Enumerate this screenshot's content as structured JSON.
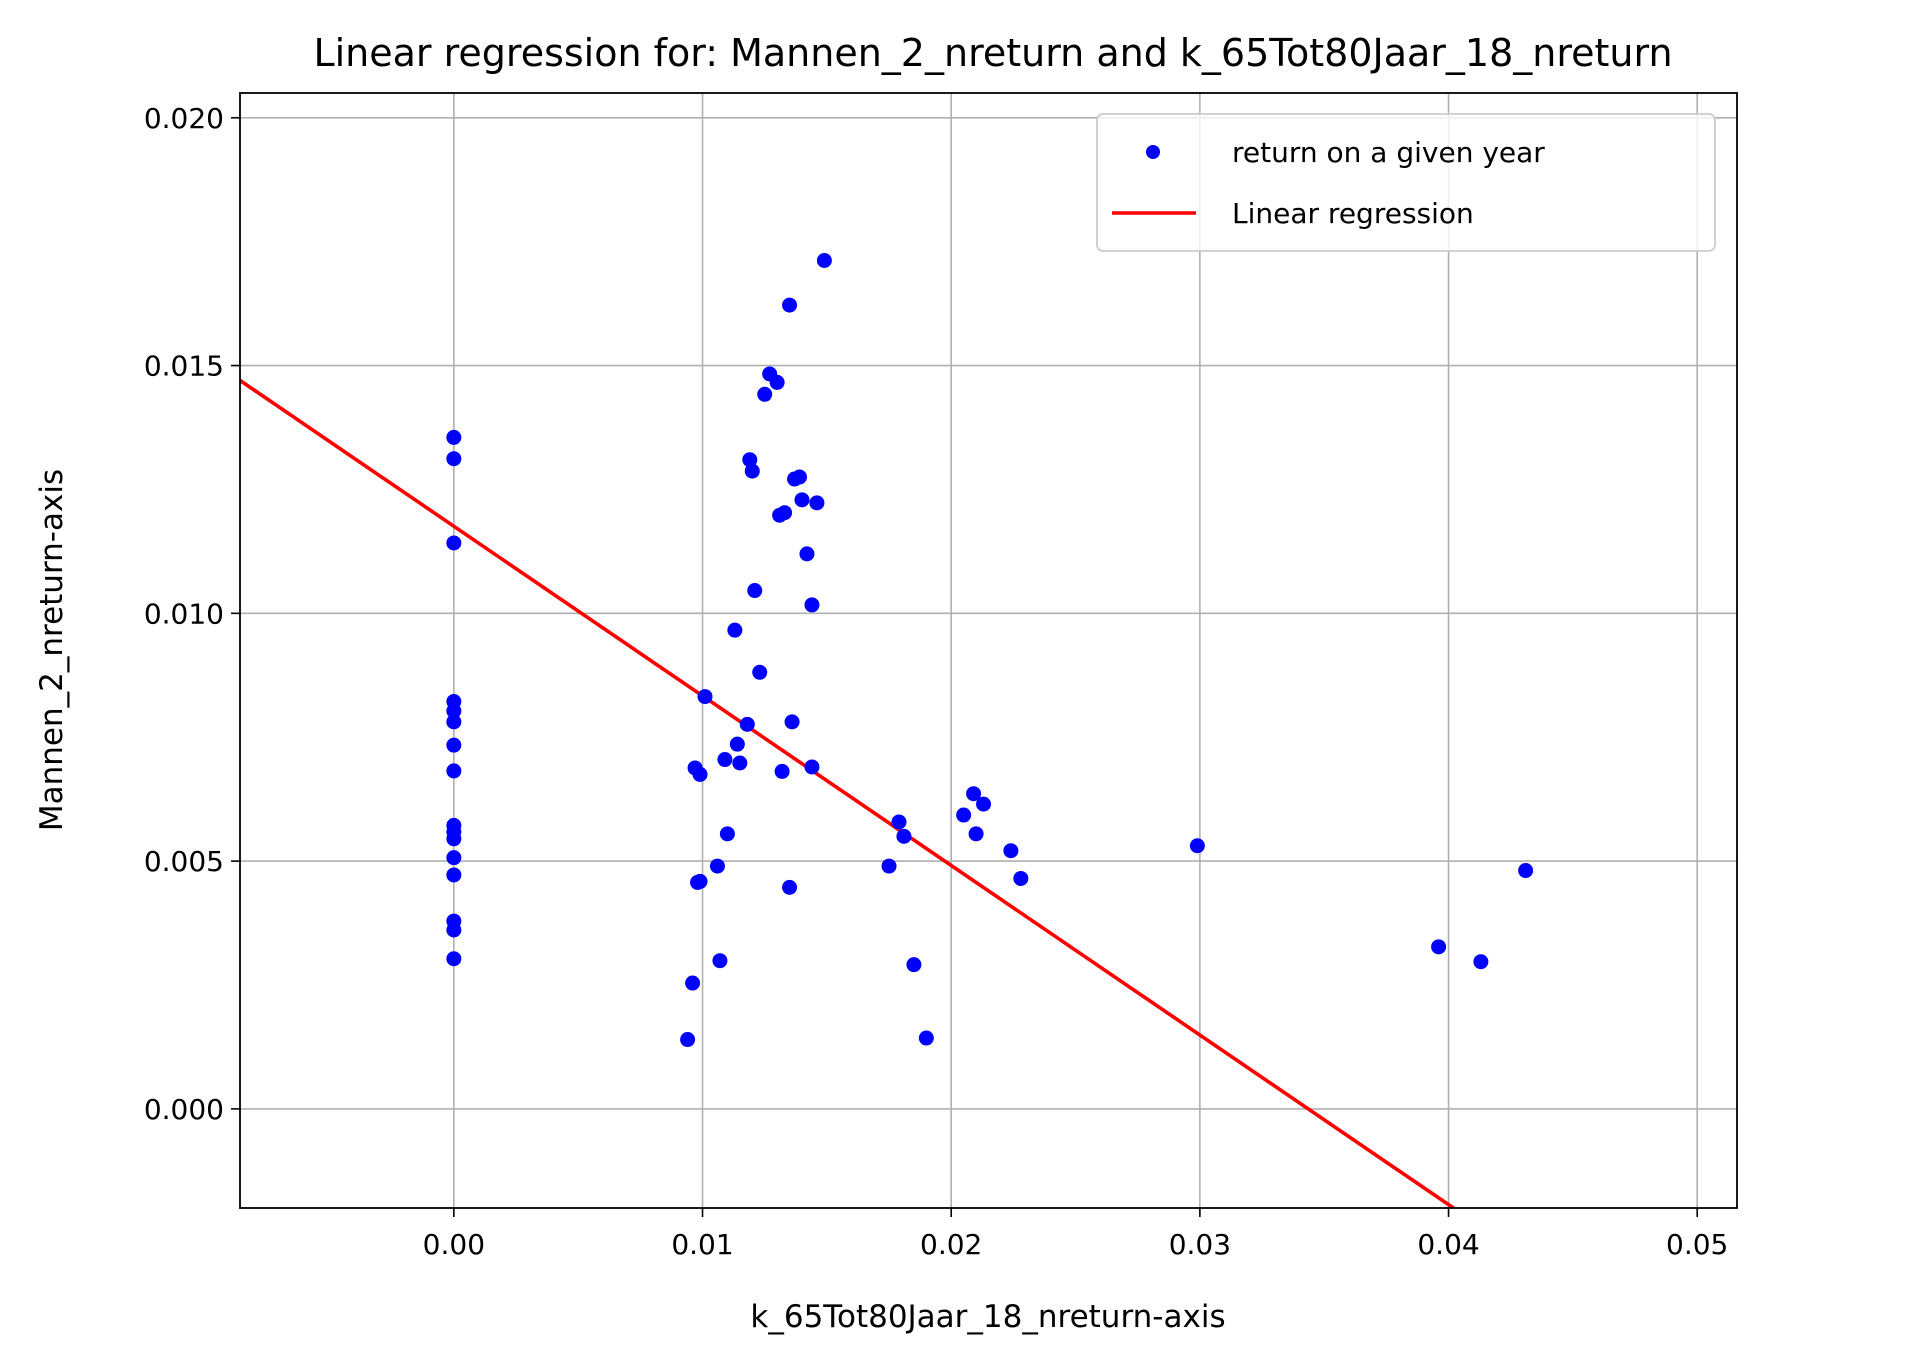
{
  "chart_data": {
    "type": "scatter",
    "title": "Linear regression for: Mannen_2_nreturn and k_65Tot80Jaar_18_nreturn",
    "xlabel": "k_65Tot80Jaar_18_nreturn-axis",
    "ylabel": "Mannen_2_nreturn-axis",
    "xlim": [
      -0.0086,
      0.0516
    ],
    "ylim": [
      -0.002,
      0.0205
    ],
    "xticks": [
      0.0,
      0.01,
      0.02,
      0.03,
      0.04,
      0.05
    ],
    "xtick_labels": [
      "0.00",
      "0.01",
      "0.02",
      "0.03",
      "0.04",
      "0.05"
    ],
    "yticks": [
      0.0,
      0.005,
      0.01,
      0.015,
      0.02
    ],
    "ytick_labels": [
      "0.000",
      "0.005",
      "0.010",
      "0.015",
      "0.020"
    ],
    "grid": true,
    "legend_position": "upper right",
    "colors": {
      "points": "#0000ff",
      "line": "#ff0000",
      "grid": "#b0b0b0"
    },
    "series": [
      {
        "name": "return on a given year",
        "kind": "scatter",
        "points": [
          [
            0.0,
            0.01355
          ],
          [
            0.0,
            0.01312
          ],
          [
            0.0,
            0.01142
          ],
          [
            0.0,
            0.00822
          ],
          [
            0.0,
            0.00803
          ],
          [
            0.0,
            0.00781
          ],
          [
            0.0,
            0.00734
          ],
          [
            0.0,
            0.00682
          ],
          [
            0.0,
            0.00572
          ],
          [
            0.0,
            0.00559
          ],
          [
            0.0,
            0.00545
          ],
          [
            0.0,
            0.00507
          ],
          [
            0.0,
            0.00472
          ],
          [
            0.0,
            0.00379
          ],
          [
            0.0,
            0.00361
          ],
          [
            0.0,
            0.00303
          ],
          [
            0.0149,
            0.01712
          ],
          [
            0.0135,
            0.01622
          ],
          [
            0.0127,
            0.01483
          ],
          [
            0.013,
            0.01466
          ],
          [
            0.0125,
            0.01442
          ],
          [
            0.0119,
            0.0131
          ],
          [
            0.012,
            0.01287
          ],
          [
            0.0137,
            0.01271
          ],
          [
            0.0139,
            0.01275
          ],
          [
            0.014,
            0.01229
          ],
          [
            0.0146,
            0.01223
          ],
          [
            0.0131,
            0.01198
          ],
          [
            0.0133,
            0.01203
          ],
          [
            0.0142,
            0.0112
          ],
          [
            0.0121,
            0.01046
          ],
          [
            0.0144,
            0.01017
          ],
          [
            0.0113,
            0.00966
          ],
          [
            0.0123,
            0.00881
          ],
          [
            0.0101,
            0.00832
          ],
          [
            0.0118,
            0.00776
          ],
          [
            0.0136,
            0.00781
          ],
          [
            0.0114,
            0.00736
          ],
          [
            0.0109,
            0.00705
          ],
          [
            0.0115,
            0.00698
          ],
          [
            0.0144,
            0.0069
          ],
          [
            0.0097,
            0.00688
          ],
          [
            0.0132,
            0.00681
          ],
          [
            0.0099,
            0.00675
          ],
          [
            0.011,
            0.00555
          ],
          [
            0.0106,
            0.0049
          ],
          [
            0.0098,
            0.00457
          ],
          [
            0.0099,
            0.00459
          ],
          [
            0.0135,
            0.00447
          ],
          [
            0.0107,
            0.00299
          ],
          [
            0.0096,
            0.00254
          ],
          [
            0.0094,
            0.0014
          ],
          [
            0.0209,
            0.00636
          ],
          [
            0.0213,
            0.00615
          ],
          [
            0.0205,
            0.00593
          ],
          [
            0.0179,
            0.00579
          ],
          [
            0.0181,
            0.0055
          ],
          [
            0.021,
            0.00555
          ],
          [
            0.0224,
            0.00521
          ],
          [
            0.0175,
            0.0049
          ],
          [
            0.0228,
            0.00465
          ],
          [
            0.0185,
            0.00291
          ],
          [
            0.019,
            0.00143
          ],
          [
            0.0299,
            0.00531
          ],
          [
            0.0431,
            0.00481
          ],
          [
            0.0396,
            0.00327
          ],
          [
            0.0413,
            0.00297
          ]
        ]
      },
      {
        "name": "Linear regression",
        "kind": "line",
        "points": [
          [
            -0.0086,
            0.0147
          ],
          [
            0.0402,
            -0.002
          ]
        ]
      }
    ]
  }
}
